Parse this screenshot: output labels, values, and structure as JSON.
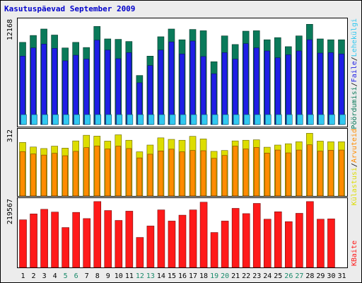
{
  "title": "Kasutuspäevad September 2009",
  "colors": {
    "background": "#ececec",
    "panel": "#ffffff",
    "visits": "#0a7a5a",
    "pages": "#1f1fe6",
    "hits": "#32c8f0",
    "bandwidth_kb": "#ff1a1a",
    "weekend_label": "#1a8a6a",
    "weekday_label": "#000000",
    "title": "#0000cc",
    "visitors_side": "#ff8c00",
    "unique_side": "#dddd00"
  },
  "side_labels": {
    "top": [
      "Pöördumisi",
      "/",
      "Faile",
      "/",
      "Lehekülgi"
    ],
    "middle": [
      "Külastusi",
      "/",
      "Arvuteid"
    ],
    "bottom": [
      "KBaite"
    ]
  },
  "chart_data": [
    {
      "type": "bar",
      "panel": "top",
      "ymax_label": "12168",
      "ylim": [
        0,
        12168
      ],
      "categories": [
        "1",
        "2",
        "3",
        "4",
        "5",
        "6",
        "7",
        "8",
        "9",
        "10",
        "11",
        "12",
        "13",
        "14",
        "15",
        "16",
        "17",
        "18",
        "19",
        "20",
        "21",
        "22",
        "23",
        "24",
        "25",
        "26",
        "27",
        "28",
        "29",
        "30",
        "31"
      ],
      "weekend_days": [
        5,
        6,
        12,
        13,
        19,
        20,
        26,
        27
      ],
      "series": [
        {
          "key": "visits",
          "values": [
            9550,
            10350,
            11100,
            10400,
            8900,
            9550,
            8950,
            11400,
            9950,
            9900,
            9650,
            5700,
            7950,
            10200,
            11100,
            9850,
            11050,
            10900,
            7300,
            10300,
            9300,
            10850,
            10900,
            9850,
            10100,
            9050,
            10300,
            11650,
            9950,
            9850,
            9850
          ]
        },
        {
          "key": "pages",
          "values": [
            7950,
            8900,
            9350,
            8850,
            7400,
            8050,
            7600,
            9800,
            8650,
            7650,
            8350,
            4850,
            6850,
            8650,
            9600,
            8200,
            9700,
            7900,
            5900,
            8350,
            7600,
            9400,
            8900,
            8550,
            7750,
            8100,
            8550,
            9850,
            8300,
            8350,
            8200
          ]
        },
        {
          "key": "hits",
          "values": [
            1150,
            1150,
            1150,
            1150,
            1150,
            1150,
            1150,
            1150,
            1150,
            1150,
            1150,
            1150,
            1150,
            1150,
            1150,
            1150,
            1150,
            1150,
            1150,
            1150,
            1150,
            1150,
            1150,
            1150,
            1150,
            1150,
            1150,
            1150,
            1150,
            1150,
            1150
          ]
        }
      ]
    },
    {
      "type": "bar",
      "panel": "middle",
      "ymax_label": "312",
      "ylim": [
        0,
        312
      ],
      "categories": [
        "1",
        "2",
        "3",
        "4",
        "5",
        "6",
        "7",
        "8",
        "9",
        "10",
        "11",
        "12",
        "13",
        "14",
        "15",
        "16",
        "17",
        "18",
        "19",
        "20",
        "21",
        "22",
        "23",
        "24",
        "25",
        "26",
        "27",
        "28",
        "29",
        "30",
        "31"
      ],
      "series": [
        {
          "key": "unique_visitors",
          "values": [
            246,
            225,
            218,
            229,
            220,
            253,
            279,
            275,
            252,
            281,
            256,
            203,
            234,
            267,
            260,
            256,
            274,
            262,
            205,
            209,
            253,
            256,
            258,
            224,
            234,
            240,
            249,
            288,
            252,
            249,
            249
          ]
        },
        {
          "key": "visits",
          "values": [
            204,
            193,
            188,
            196,
            185,
            205,
            222,
            230,
            216,
            229,
            218,
            175,
            192,
            207,
            215,
            203,
            209,
            208,
            173,
            186,
            229,
            216,
            223,
            197,
            211,
            198,
            211,
            235,
            206,
            210,
            211
          ]
        }
      ]
    },
    {
      "type": "bar",
      "panel": "bottom",
      "ymax_label": "219567",
      "ylim": [
        0,
        219567
      ],
      "categories": [
        "1",
        "2",
        "3",
        "4",
        "5",
        "6",
        "7",
        "8",
        "9",
        "10",
        "11",
        "12",
        "13",
        "14",
        "15",
        "16",
        "17",
        "18",
        "19",
        "20",
        "21",
        "22",
        "23",
        "24",
        "25",
        "26",
        "27",
        "28",
        "29",
        "30",
        "31"
      ],
      "series": [
        {
          "key": "bandwidth_kb",
          "values": [
            154000,
            173000,
            188000,
            179000,
            129000,
            178000,
            158000,
            213000,
            184000,
            152000,
            182000,
            97000,
            134000,
            186000,
            150000,
            169000,
            186000,
            211000,
            113000,
            150000,
            191000,
            174000,
            207000,
            156000,
            180000,
            148000,
            175000,
            213000,
            156000,
            157000,
            0
          ]
        }
      ]
    }
  ]
}
